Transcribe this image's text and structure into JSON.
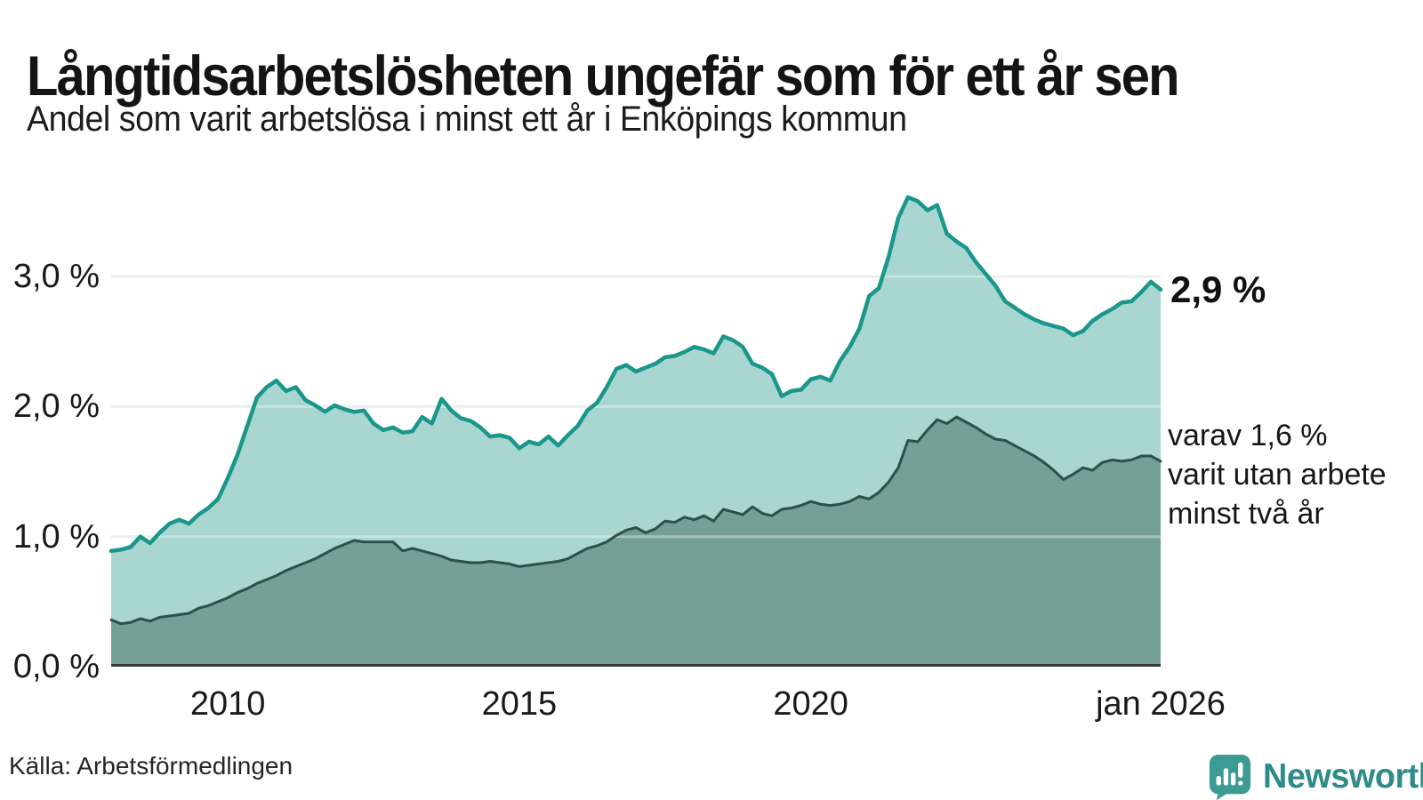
{
  "header": {
    "title": "Långtidsarbetslösheten ungefär som för ett år sen",
    "subtitle": "Andel som varit arbetslösa i minst ett år i Enköpings kommun"
  },
  "chart_data": {
    "type": "area",
    "title": "Långtidsarbetslösheten ungefär som för ett år sen",
    "subtitle": "Andel som varit arbetslösa i minst ett år i Enköpings kommun",
    "x_start_year": 2008,
    "x_end_year": 2026,
    "x_step_months": 2,
    "grid": "horizontal",
    "legend_position": "right-annotations",
    "x_ticks": [
      {
        "label": "2010",
        "year": 2010
      },
      {
        "label": "2015",
        "year": 2015
      },
      {
        "label": "2020",
        "year": 2020
      },
      {
        "label": "jan 2026",
        "year": 2026
      }
    ],
    "y_ticks": [
      {
        "label": "0,0 %",
        "value": 0
      },
      {
        "label": "1,0 %",
        "value": 1
      },
      {
        "label": "2,0 %",
        "value": 2
      },
      {
        "label": "3,0 %",
        "value": 3
      }
    ],
    "ylim": [
      0,
      3.76
    ],
    "series": [
      {
        "name": "Andel arbetslösa minst ett år",
        "color": "#18978a",
        "fill": "#a9d6d0",
        "end_value": "2,9 %",
        "values": [
          0.89,
          0.9,
          0.92,
          1.0,
          0.95,
          1.03,
          1.1,
          1.13,
          1.1,
          1.17,
          1.22,
          1.29,
          1.45,
          1.63,
          1.85,
          2.07,
          2.15,
          2.2,
          2.12,
          2.15,
          2.05,
          2.01,
          1.96,
          2.01,
          1.98,
          1.96,
          1.97,
          1.87,
          1.82,
          1.84,
          1.8,
          1.81,
          1.92,
          1.87,
          2.06,
          1.97,
          1.91,
          1.89,
          1.84,
          1.77,
          1.78,
          1.76,
          1.68,
          1.73,
          1.71,
          1.77,
          1.7,
          1.78,
          1.85,
          1.97,
          2.03,
          2.15,
          2.29,
          2.32,
          2.27,
          2.3,
          2.33,
          2.38,
          2.39,
          2.42,
          2.46,
          2.44,
          2.41,
          2.54,
          2.51,
          2.46,
          2.33,
          2.3,
          2.25,
          2.08,
          2.12,
          2.13,
          2.21,
          2.23,
          2.2,
          2.35,
          2.46,
          2.6,
          2.85,
          2.91,
          3.15,
          3.45,
          3.61,
          3.58,
          3.51,
          3.55,
          3.33,
          3.27,
          3.22,
          3.11,
          3.02,
          2.93,
          2.81,
          2.76,
          2.71,
          2.67,
          2.64,
          2.62,
          2.6,
          2.55,
          2.58,
          2.66,
          2.71,
          2.75,
          2.8,
          2.81,
          2.88,
          2.96,
          2.9
        ]
      },
      {
        "name": "varav utan arbete minst två år",
        "color": "#2e4f4a",
        "fill": "#74a099",
        "end_value": "1,6 %",
        "values": [
          0.36,
          0.33,
          0.34,
          0.37,
          0.35,
          0.38,
          0.39,
          0.4,
          0.41,
          0.45,
          0.47,
          0.5,
          0.53,
          0.57,
          0.6,
          0.64,
          0.67,
          0.7,
          0.74,
          0.77,
          0.8,
          0.83,
          0.87,
          0.91,
          0.94,
          0.97,
          0.96,
          0.96,
          0.96,
          0.96,
          0.89,
          0.91,
          0.89,
          0.87,
          0.85,
          0.82,
          0.81,
          0.8,
          0.8,
          0.81,
          0.8,
          0.79,
          0.77,
          0.78,
          0.79,
          0.8,
          0.81,
          0.83,
          0.87,
          0.91,
          0.93,
          0.96,
          1.01,
          1.05,
          1.07,
          1.03,
          1.06,
          1.12,
          1.11,
          1.15,
          1.13,
          1.16,
          1.12,
          1.21,
          1.19,
          1.17,
          1.23,
          1.18,
          1.16,
          1.21,
          1.22,
          1.24,
          1.27,
          1.25,
          1.24,
          1.25,
          1.27,
          1.31,
          1.29,
          1.34,
          1.42,
          1.53,
          1.74,
          1.73,
          1.82,
          1.9,
          1.87,
          1.92,
          1.88,
          1.84,
          1.79,
          1.75,
          1.74,
          1.7,
          1.66,
          1.62,
          1.57,
          1.51,
          1.44,
          1.48,
          1.53,
          1.51,
          1.57,
          1.59,
          1.58,
          1.59,
          1.62,
          1.62,
          1.58
        ]
      }
    ],
    "annotations": {
      "total_end_label": "2,9 %",
      "two_plus_end_label": "varav 1,6 %\nvarit utan arbete\nminst två år"
    },
    "colors": {
      "gridline": "#e3e5e8",
      "baseline": "#383838",
      "background": "#ffffff"
    }
  },
  "footer": {
    "source": "Källa: Arbetsförmedlingen",
    "brand": {
      "name": "Newsworthy",
      "icon": "newsworthy-speech-bubble-chart-icon",
      "text_color": "#2d8c87",
      "icon_color": "#3c9c94"
    }
  }
}
